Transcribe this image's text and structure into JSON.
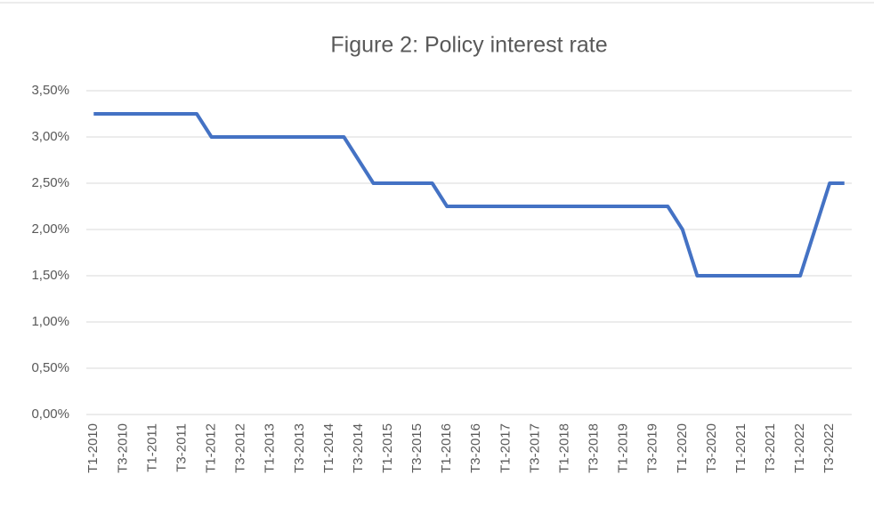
{
  "chart_data": {
    "type": "line",
    "title": "Figure 2: Policy interest rate",
    "categories": [
      "T1-2010",
      null,
      "T3-2010",
      null,
      "T1-2011",
      null,
      "T3-2011",
      null,
      "T1-2012",
      null,
      "T3-2012",
      null,
      "T1-2013",
      null,
      "T3-2013",
      null,
      "T1-2014",
      null,
      "T3-2014",
      null,
      "T1-2015",
      null,
      "T3-2015",
      null,
      "T1-2016",
      null,
      "T3-2016",
      null,
      "T1-2017",
      null,
      "T3-2017",
      null,
      "T1-2018",
      null,
      "T3-2018",
      null,
      "T1-2019",
      null,
      "T3-2019",
      null,
      "T1-2020",
      null,
      "T3-2020",
      null,
      "T1-2021",
      null,
      "T3-2021",
      null,
      "T1-2022",
      null,
      "T3-2022",
      null
    ],
    "series": [
      {
        "color": "#4472c4",
        "values": [
          3.25,
          3.25,
          3.25,
          3.25,
          3.25,
          3.25,
          3.25,
          3.25,
          3.0,
          3.0,
          3.0,
          3.0,
          3.0,
          3.0,
          3.0,
          3.0,
          3.0,
          3.0,
          2.75,
          2.5,
          2.5,
          2.5,
          2.5,
          2.5,
          2.25,
          2.25,
          2.25,
          2.25,
          2.25,
          2.25,
          2.25,
          2.25,
          2.25,
          2.25,
          2.25,
          2.25,
          2.25,
          2.25,
          2.25,
          2.25,
          2.0,
          1.5,
          1.5,
          1.5,
          1.5,
          1.5,
          1.5,
          1.5,
          1.5,
          2.0,
          2.5,
          2.5
        ]
      }
    ],
    "ylim": [
      0,
      3.5
    ],
    "yticks": [
      {
        "value": 0,
        "label": "0,00%"
      },
      {
        "value": 0.5,
        "label": "0,50%"
      },
      {
        "value": 1,
        "label": "1,00%"
      },
      {
        "value": 1.5,
        "label": "1,50%"
      },
      {
        "value": 2,
        "label": "2,00%"
      },
      {
        "value": 2.5,
        "label": "2,50%"
      },
      {
        "value": 3,
        "label": "3,00%"
      },
      {
        "value": 3.5,
        "label": "3,50%"
      }
    ],
    "grid": true
  }
}
